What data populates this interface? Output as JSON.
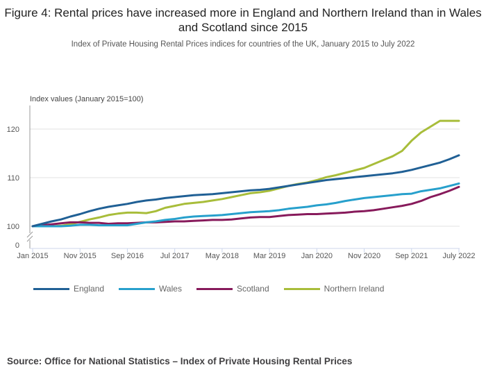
{
  "title": "Figure 4: Rental prices have increased more in England and Northern Ireland than in Wales and Scotland since 2015",
  "subtitle": "Index of Private Housing Rental Prices indices for countries of the UK, January 2015 to July 2022",
  "source": "Source: Office for National Statistics – Index of Private Housing Rental Prices",
  "chart_data": {
    "type": "line",
    "title": "Figure 4: Rental prices have increased more in England and Northern Ireland than in Wales and Scotland since 2015",
    "subtitle": "Index of Private Housing Rental Prices indices for countries of the UK, January 2015 to July 2022",
    "ylabel": "Index values (January 2015=100)",
    "xlabel": "",
    "ylim": [
      100,
      125
    ],
    "y_axis_break": true,
    "y_ticks": [
      0,
      100,
      110,
      120
    ],
    "x_tick_labels": [
      "Jan 2015",
      "Nov 2015",
      "Sep 2016",
      "Jul 2017",
      "May 2018",
      "Mar 2019",
      "Jan 2020",
      "Nov 2020",
      "Sep 2021",
      "July 2022"
    ],
    "x_tick_month_index": [
      0,
      10,
      20,
      30,
      40,
      50,
      60,
      70,
      80,
      90
    ],
    "grid": "horizontal",
    "legend_position": "bottom-left",
    "x_month_index": [
      0,
      2,
      4,
      6,
      8,
      10,
      12,
      14,
      16,
      18,
      20,
      22,
      24,
      26,
      28,
      30,
      32,
      34,
      36,
      38,
      40,
      42,
      44,
      46,
      48,
      50,
      52,
      54,
      56,
      58,
      60,
      62,
      64,
      66,
      68,
      70,
      72,
      74,
      76,
      78,
      80,
      82,
      84,
      86,
      88,
      90
    ],
    "series": [
      {
        "name": "England",
        "color": "#206095",
        "values": [
          100,
          100.5,
          101,
          101.4,
          102,
          102.5,
          103.1,
          103.6,
          104,
          104.3,
          104.6,
          105,
          105.3,
          105.5,
          105.8,
          106,
          106.2,
          106.4,
          106.5,
          106.6,
          106.8,
          107,
          107.2,
          107.4,
          107.5,
          107.7,
          108,
          108.3,
          108.6,
          108.9,
          109.2,
          109.5,
          109.7,
          109.9,
          110.1,
          110.3,
          110.5,
          110.7,
          110.9,
          111.2,
          111.6,
          112.1,
          112.6,
          113.1,
          113.8,
          114.6
        ]
      },
      {
        "name": "Wales",
        "color": "#27a0cc",
        "values": [
          100,
          100,
          100,
          100,
          100.1,
          100.3,
          100.3,
          100.2,
          100.2,
          100.2,
          100.2,
          100.5,
          100.8,
          101,
          101.3,
          101.5,
          101.8,
          102,
          102.1,
          102.2,
          102.3,
          102.5,
          102.7,
          102.9,
          103,
          103.1,
          103.3,
          103.6,
          103.8,
          104,
          104.3,
          104.5,
          104.8,
          105.2,
          105.5,
          105.8,
          106,
          106.2,
          106.4,
          106.6,
          106.7,
          107.2,
          107.5,
          107.8,
          108.3,
          108.8
        ]
      },
      {
        "name": "Scotland",
        "color": "#871a5b",
        "values": [
          100,
          100.2,
          100.4,
          100.6,
          100.8,
          100.8,
          100.7,
          100.7,
          100.5,
          100.6,
          100.6,
          100.7,
          100.8,
          100.8,
          100.9,
          101,
          101,
          101.1,
          101.2,
          101.3,
          101.3,
          101.4,
          101.6,
          101.8,
          101.9,
          101.9,
          102.1,
          102.3,
          102.4,
          102.5,
          102.5,
          102.6,
          102.7,
          102.8,
          103,
          103.1,
          103.3,
          103.6,
          103.9,
          104.2,
          104.6,
          105.2,
          106,
          106.6,
          107.3,
          108.1
        ]
      },
      {
        "name": "Northern Ireland",
        "color": "#a8bd3a",
        "values": [
          100,
          100,
          100,
          100.1,
          100.4,
          100.9,
          101.4,
          101.8,
          102.3,
          102.6,
          102.8,
          102.8,
          102.7,
          103.1,
          103.8,
          104.2,
          104.6,
          104.8,
          105,
          105.3,
          105.6,
          106,
          106.4,
          106.8,
          107,
          107.3,
          107.8,
          108.3,
          108.7,
          109,
          109.5,
          110.1,
          110.5,
          111,
          111.5,
          112,
          112.8,
          113.6,
          114.4,
          115.5,
          117.6,
          119.3,
          120.5,
          121.7,
          121.7,
          121.7
        ]
      }
    ]
  }
}
